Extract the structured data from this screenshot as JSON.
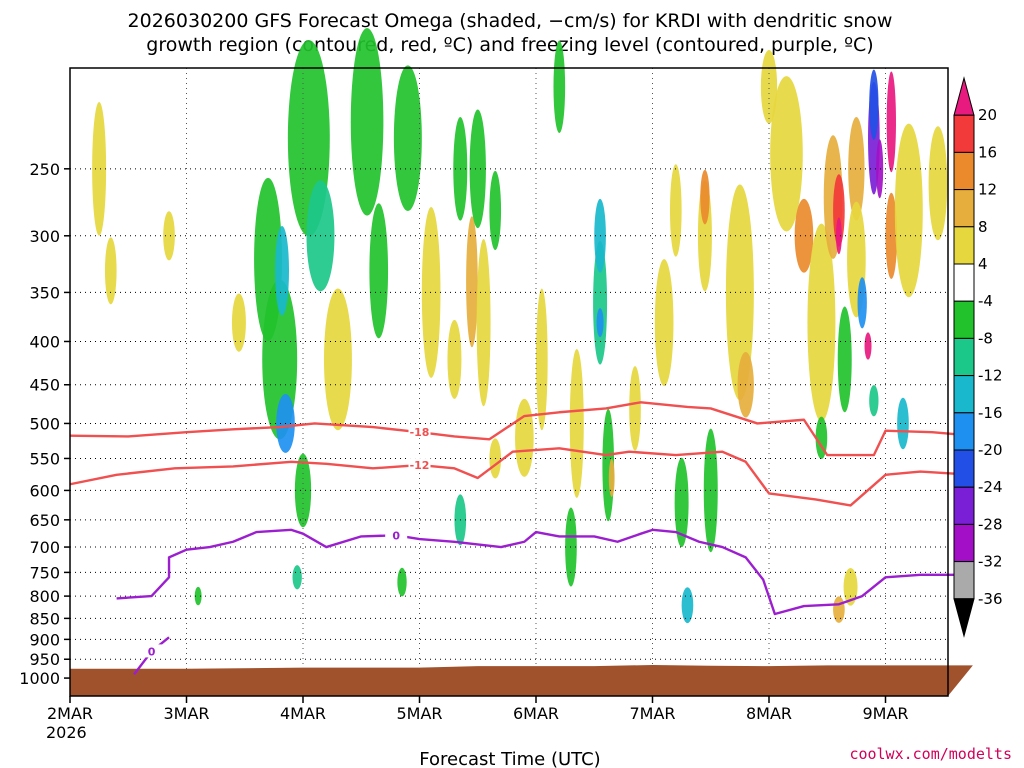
{
  "chart_data": {
    "type": "heatmap",
    "title_line1": "2026030200 GFS Forecast Omega (shaded, −cm/s) for KRDI with dendritic snow",
    "title_line2": "growth region (contoured, red, ºC) and freezing level (contoured, purple, ºC)",
    "xlabel": "Forecast Time (UTC)",
    "ylabel": "",
    "credit": "coolwx.com/modelts",
    "x_start_year": "2026",
    "x_range_days": [
      0,
      7.75
    ],
    "x_ticks": [
      {
        "label": "2MAR",
        "day": 0
      },
      {
        "label": "3MAR",
        "day": 1
      },
      {
        "label": "4MAR",
        "day": 2
      },
      {
        "label": "5MAR",
        "day": 3
      },
      {
        "label": "6MAR",
        "day": 4
      },
      {
        "label": "7MAR",
        "day": 5
      },
      {
        "label": "8MAR",
        "day": 6
      },
      {
        "label": "9MAR",
        "day": 7
      }
    ],
    "y_scale": "log-pressure",
    "y_range_hpa": [
      1050,
      190
    ],
    "y_ticks": [
      250,
      300,
      350,
      400,
      450,
      500,
      550,
      600,
      650,
      700,
      750,
      800,
      850,
      900,
      950,
      1000
    ],
    "colorbar_labels": [
      "20",
      "16",
      "12",
      "8",
      "4",
      "-4",
      "-8",
      "-12",
      "-16",
      "-20",
      "-24",
      "-28",
      "-32",
      "-36"
    ],
    "colorbar": [
      {
        "range": "above 20",
        "color": "#e8197f"
      },
      {
        "range": "16 to 20",
        "color": "#f23a3a"
      },
      {
        "range": "12 to 16",
        "color": "#ea8a2c"
      },
      {
        "range": "8 to 12",
        "color": "#e6ae3d"
      },
      {
        "range": "4 to 8",
        "color": "#e6d73e"
      },
      {
        "range": "-4 to 4",
        "color": "#ffffff"
      },
      {
        "range": "-8 to -4",
        "color": "#22c22c"
      },
      {
        "range": "-12 to -8",
        "color": "#1cc78a"
      },
      {
        "range": "-16 to -12",
        "color": "#19b8cc"
      },
      {
        "range": "-20 to -16",
        "color": "#1e90f0"
      },
      {
        "range": "-24 to -20",
        "color": "#2250e6"
      },
      {
        "range": "-28 to -24",
        "color": "#7a1fd6"
      },
      {
        "range": "-32 to -28",
        "color": "#a20fc6"
      },
      {
        "range": "-36 to -32",
        "color": "#aaaaaa"
      },
      {
        "range": "below -36",
        "color": "#000000"
      }
    ],
    "ground_color": "#a0522d",
    "series": [
      {
        "name": "freezing level 0C",
        "label": "0",
        "color": "#9b1fcf",
        "points": [
          [
            0.4,
            805
          ],
          [
            0.7,
            800
          ],
          [
            0.85,
            760
          ],
          [
            0.85,
            720
          ],
          [
            1.0,
            705
          ],
          [
            1.2,
            700
          ],
          [
            1.4,
            690
          ],
          [
            1.6,
            672
          ],
          [
            1.9,
            668
          ],
          [
            2.0,
            675
          ],
          [
            2.2,
            700
          ],
          [
            2.5,
            680
          ],
          [
            2.8,
            678
          ],
          [
            3.0,
            685
          ],
          [
            3.3,
            690
          ],
          [
            3.5,
            695
          ],
          [
            3.7,
            700
          ],
          [
            3.9,
            690
          ],
          [
            4.0,
            672
          ],
          [
            4.2,
            680
          ],
          [
            4.5,
            680
          ],
          [
            4.7,
            690
          ],
          [
            4.9,
            675
          ],
          [
            5.0,
            668
          ],
          [
            5.2,
            672
          ],
          [
            5.4,
            690
          ],
          [
            5.6,
            700
          ],
          [
            5.8,
            720
          ],
          [
            5.95,
            765
          ],
          [
            6.05,
            840
          ],
          [
            6.3,
            822
          ],
          [
            6.6,
            818
          ],
          [
            6.8,
            800
          ],
          [
            7.0,
            760
          ],
          [
            7.3,
            755
          ],
          [
            7.75,
            755
          ]
        ]
      },
      {
        "name": "freezing level 0C segment",
        "label": "0",
        "color": "#9b1fcf",
        "points": [
          [
            0.55,
            990
          ],
          [
            0.7,
            930
          ],
          [
            0.85,
            895
          ]
        ]
      },
      {
        "name": "dendritic growth -12C",
        "label": "-12",
        "color": "#f05050",
        "points": [
          [
            0.0,
            590
          ],
          [
            0.4,
            575
          ],
          [
            0.9,
            565
          ],
          [
            1.4,
            562
          ],
          [
            1.9,
            555
          ],
          [
            2.2,
            558
          ],
          [
            2.6,
            565
          ],
          [
            3.0,
            560
          ],
          [
            3.3,
            565
          ],
          [
            3.5,
            580
          ],
          [
            3.8,
            540
          ],
          [
            4.2,
            535
          ],
          [
            4.6,
            545
          ],
          [
            4.8,
            540
          ],
          [
            5.2,
            545
          ],
          [
            5.6,
            540
          ],
          [
            5.8,
            555
          ],
          [
            6.0,
            605
          ],
          [
            6.4,
            615
          ],
          [
            6.7,
            625
          ],
          [
            7.0,
            575
          ],
          [
            7.3,
            570
          ],
          [
            7.75,
            575
          ]
        ]
      },
      {
        "name": "dendritic growth -18C",
        "label": "-18",
        "color": "#f05050",
        "points": [
          [
            0.0,
            517
          ],
          [
            0.5,
            518
          ],
          [
            1.0,
            512
          ],
          [
            1.4,
            508
          ],
          [
            1.8,
            505
          ],
          [
            2.1,
            500
          ],
          [
            2.6,
            505
          ],
          [
            3.0,
            512
          ],
          [
            3.3,
            518
          ],
          [
            3.6,
            522
          ],
          [
            3.9,
            490
          ],
          [
            4.2,
            485
          ],
          [
            4.6,
            480
          ],
          [
            4.9,
            472
          ],
          [
            5.3,
            478
          ],
          [
            5.5,
            480
          ],
          [
            5.9,
            500
          ],
          [
            6.3,
            495
          ],
          [
            6.5,
            545
          ],
          [
            6.9,
            545
          ],
          [
            7.0,
            510
          ],
          [
            7.4,
            512
          ],
          [
            7.75,
            517
          ]
        ]
      }
    ]
  }
}
